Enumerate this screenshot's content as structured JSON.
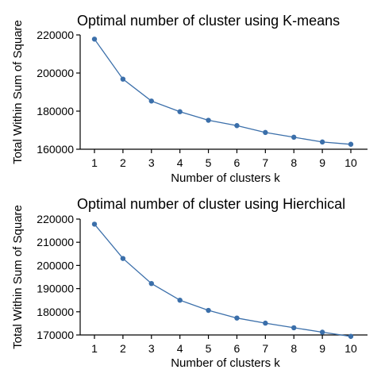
{
  "chart_data": [
    {
      "type": "line",
      "title": "Optimal number of cluster using K-means",
      "xlabel": "Number of clusters k",
      "ylabel": "Total Within Sum of Square",
      "x": [
        1,
        2,
        3,
        4,
        5,
        6,
        7,
        8,
        9,
        10
      ],
      "x_tick_labels": [
        "1",
        "2",
        "3",
        "4",
        "5",
        "6",
        "7",
        "8",
        "9",
        "10"
      ],
      "y_ticks": [
        160000,
        180000,
        200000,
        220000
      ],
      "y_tick_labels": [
        "160000",
        "180000",
        "200000",
        "220000"
      ],
      "ylim": [
        160000,
        220000
      ],
      "series": [
        {
          "values": [
            217800,
            196800,
            185300,
            179700,
            175200,
            172400,
            168800,
            166300,
            163800,
            162600
          ]
        }
      ],
      "color": "#3b6faa",
      "grid": false
    },
    {
      "type": "line",
      "title": "Optimal number of cluster using Hierchical",
      "xlabel": "Number of clusters k",
      "ylabel": "Total Within Sum of Square",
      "x": [
        1,
        2,
        3,
        4,
        5,
        6,
        7,
        8,
        9,
        10
      ],
      "x_tick_labels": [
        "1",
        "2",
        "3",
        "4",
        "5",
        "6",
        "7",
        "8",
        "9",
        "10"
      ],
      "y_ticks": [
        170000,
        180000,
        190000,
        200000,
        210000,
        220000
      ],
      "y_tick_labels": [
        "170000",
        "180000",
        "190000",
        "200000",
        "210000",
        "220000"
      ],
      "ylim": [
        170000,
        220000
      ],
      "series": [
        {
          "values": [
            217800,
            203000,
            192200,
            185000,
            180600,
            177300,
            175100,
            173100,
            171200,
            169400
          ]
        }
      ],
      "color": "#3b6faa",
      "grid": false
    }
  ]
}
